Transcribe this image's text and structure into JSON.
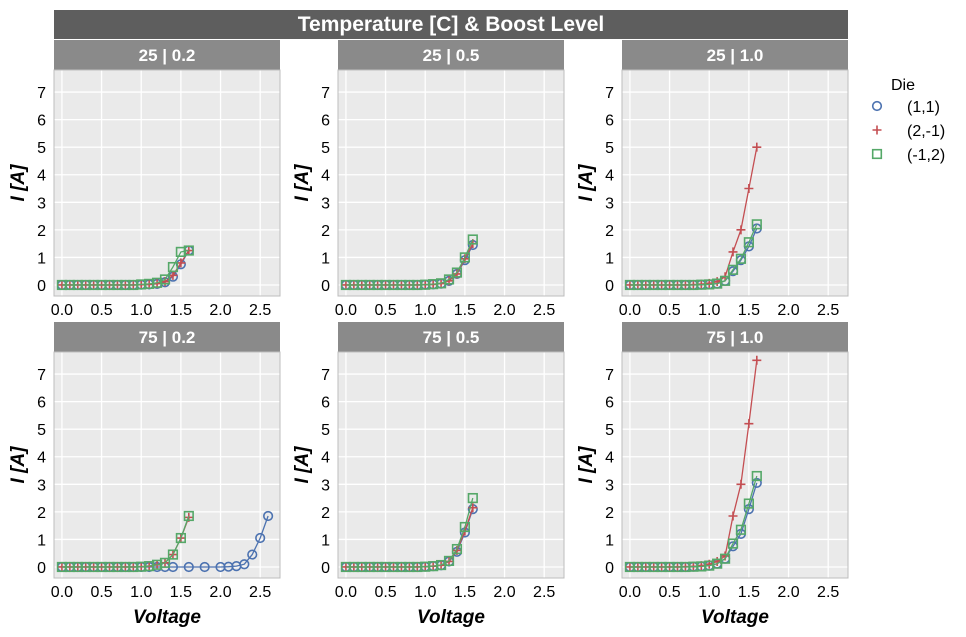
{
  "title": "Temperature [C] & Boost Level",
  "legend": {
    "title": "Die",
    "entries": [
      {
        "label": "(1,1)",
        "marker": "circle",
        "color": "#4c72b0"
      },
      {
        "label": "(2,-1)",
        "marker": "plus",
        "color": "#c44e52"
      },
      {
        "label": "(-1,2)",
        "marker": "square",
        "color": "#55a868"
      }
    ]
  },
  "chart_data": {
    "type": "line",
    "xlabel": "Voltage",
    "ylabel": "I [A]",
    "xlim": [
      -0.1,
      2.75
    ],
    "ylim": [
      -0.4,
      7.8
    ],
    "x_ticks": [
      0.0,
      0.5,
      1.0,
      1.5,
      2.0,
      2.5
    ],
    "x_tick_labels": [
      "0.0",
      "0.5",
      "1.0",
      "1.5",
      "2.0",
      "2.5"
    ],
    "y_ticks": [
      0,
      1,
      2,
      3,
      4,
      5,
      6,
      7
    ],
    "y_tick_labels": [
      "0",
      "1",
      "2",
      "3",
      "4",
      "5",
      "6",
      "7"
    ],
    "grid": true,
    "legend_position": "right",
    "panels": [
      {
        "label": "25 | 0.2",
        "series": [
          {
            "name": "(1,1)",
            "x": [
              0,
              0.1,
              0.2,
              0.3,
              0.4,
              0.5,
              0.6,
              0.7,
              0.8,
              0.9,
              1.0,
              1.1,
              1.2,
              1.3,
              1.4,
              1.5,
              1.6
            ],
            "y": [
              0,
              0,
              0,
              0,
              0,
              0,
              0,
              0,
              0,
              0,
              0.01,
              0.02,
              0.04,
              0.1,
              0.3,
              0.75,
              1.25
            ]
          },
          {
            "name": "(2,-1)",
            "x": [
              0,
              0.1,
              0.2,
              0.3,
              0.4,
              0.5,
              0.6,
              0.7,
              0.8,
              0.9,
              1.0,
              1.1,
              1.2,
              1.3,
              1.4,
              1.5,
              1.6
            ],
            "y": [
              0,
              0,
              0,
              0,
              0,
              0,
              0,
              0,
              0,
              0,
              0.01,
              0.02,
              0.05,
              0.12,
              0.35,
              0.8,
              1.25
            ]
          },
          {
            "name": "(-1,2)",
            "x": [
              0,
              0.1,
              0.2,
              0.3,
              0.4,
              0.5,
              0.6,
              0.7,
              0.8,
              0.9,
              1.0,
              1.1,
              1.2,
              1.3,
              1.4,
              1.5,
              1.6
            ],
            "y": [
              0,
              0,
              0,
              0,
              0,
              0,
              0,
              0,
              0,
              0,
              0.02,
              0.04,
              0.08,
              0.2,
              0.65,
              1.2,
              1.25
            ]
          }
        ]
      },
      {
        "label": "25 | 0.5",
        "series": [
          {
            "name": "(1,1)",
            "x": [
              0,
              0.1,
              0.2,
              0.3,
              0.4,
              0.5,
              0.6,
              0.7,
              0.8,
              0.9,
              1.0,
              1.1,
              1.2,
              1.3,
              1.4,
              1.5,
              1.6
            ],
            "y": [
              0,
              0,
              0,
              0,
              0,
              0,
              0,
              0,
              0,
              0,
              0.01,
              0.02,
              0.05,
              0.15,
              0.4,
              0.9,
              1.45
            ]
          },
          {
            "name": "(2,-1)",
            "x": [
              0,
              0.1,
              0.2,
              0.3,
              0.4,
              0.5,
              0.6,
              0.7,
              0.8,
              0.9,
              1.0,
              1.1,
              1.2,
              1.3,
              1.4,
              1.5,
              1.6
            ],
            "y": [
              0,
              0,
              0,
              0,
              0,
              0,
              0,
              0,
              0,
              0,
              0.01,
              0.02,
              0.05,
              0.15,
              0.4,
              0.95,
              1.5
            ]
          },
          {
            "name": "(-1,2)",
            "x": [
              0,
              0.1,
              0.2,
              0.3,
              0.4,
              0.5,
              0.6,
              0.7,
              0.8,
              0.9,
              1.0,
              1.1,
              1.2,
              1.3,
              1.4,
              1.5,
              1.6
            ],
            "y": [
              0,
              0,
              0,
              0,
              0,
              0,
              0,
              0,
              0,
              0,
              0.01,
              0.03,
              0.06,
              0.2,
              0.45,
              1.0,
              1.65
            ]
          }
        ]
      },
      {
        "label": "25 | 1.0",
        "series": [
          {
            "name": "(1,1)",
            "x": [
              0,
              0.1,
              0.2,
              0.3,
              0.4,
              0.5,
              0.6,
              0.7,
              0.8,
              0.9,
              1.0,
              1.1,
              1.2,
              1.3,
              1.4,
              1.5,
              1.6
            ],
            "y": [
              0,
              0,
              0,
              0,
              0,
              0,
              0,
              0,
              0,
              0.01,
              0.02,
              0.05,
              0.15,
              0.5,
              0.9,
              1.4,
              2.05
            ]
          },
          {
            "name": "(2,-1)",
            "x": [
              0,
              0.1,
              0.2,
              0.3,
              0.4,
              0.5,
              0.6,
              0.7,
              0.8,
              0.9,
              1.0,
              1.1,
              1.2,
              1.3,
              1.4,
              1.5,
              1.6
            ],
            "y": [
              0,
              0,
              0,
              0,
              0,
              0,
              0,
              0,
              0.01,
              0.03,
              0.06,
              0.12,
              0.3,
              1.2,
              2.0,
              3.5,
              5.0
            ]
          },
          {
            "name": "(-1,2)",
            "x": [
              0,
              0.1,
              0.2,
              0.3,
              0.4,
              0.5,
              0.6,
              0.7,
              0.8,
              0.9,
              1.0,
              1.1,
              1.2,
              1.3,
              1.4,
              1.5,
              1.6
            ],
            "y": [
              0,
              0,
              0,
              0,
              0,
              0,
              0,
              0,
              0,
              0.01,
              0.02,
              0.05,
              0.15,
              0.55,
              0.95,
              1.55,
              2.2
            ]
          }
        ]
      },
      {
        "label": "75 | 0.2",
        "series": [
          {
            "name": "(1,1)",
            "x": [
              0,
              0.1,
              0.2,
              0.3,
              0.4,
              0.5,
              0.6,
              0.7,
              0.8,
              0.9,
              1.0,
              1.1,
              1.2,
              1.3,
              1.4,
              1.6,
              1.8,
              2.0,
              2.1,
              2.2,
              2.3,
              2.4,
              2.5,
              2.6
            ],
            "y": [
              0,
              0,
              0,
              0,
              0,
              0,
              0,
              0,
              0,
              0,
              0,
              0,
              0,
              0,
              0,
              0,
              0,
              0,
              0.01,
              0.03,
              0.1,
              0.45,
              1.05,
              1.85
            ]
          },
          {
            "name": "(2,-1)",
            "x": [
              0,
              0.1,
              0.2,
              0.3,
              0.4,
              0.5,
              0.6,
              0.7,
              0.8,
              0.9,
              1.0,
              1.1,
              1.2,
              1.3,
              1.4,
              1.5,
              1.6
            ],
            "y": [
              0,
              0,
              0,
              0,
              0,
              0,
              0,
              0,
              0,
              0,
              0.01,
              0.03,
              0.08,
              0.15,
              0.45,
              1.05,
              1.8
            ]
          },
          {
            "name": "(-1,2)",
            "x": [
              0,
              0.1,
              0.2,
              0.3,
              0.4,
              0.5,
              0.6,
              0.7,
              0.8,
              0.9,
              1.0,
              1.1,
              1.2,
              1.3,
              1.4,
              1.5,
              1.6
            ],
            "y": [
              0,
              0,
              0,
              0,
              0,
              0,
              0,
              0,
              0,
              0,
              0.01,
              0.03,
              0.08,
              0.15,
              0.45,
              1.05,
              1.85
            ]
          }
        ]
      },
      {
        "label": "75 | 0.5",
        "series": [
          {
            "name": "(1,1)",
            "x": [
              0,
              0.1,
              0.2,
              0.3,
              0.4,
              0.5,
              0.6,
              0.7,
              0.8,
              0.9,
              1.0,
              1.1,
              1.2,
              1.3,
              1.4,
              1.5,
              1.6
            ],
            "y": [
              0,
              0,
              0,
              0,
              0,
              0,
              0,
              0,
              0,
              0,
              0.01,
              0.03,
              0.06,
              0.2,
              0.55,
              1.25,
              2.1
            ]
          },
          {
            "name": "(2,-1)",
            "x": [
              0,
              0.1,
              0.2,
              0.3,
              0.4,
              0.5,
              0.6,
              0.7,
              0.8,
              0.9,
              1.0,
              1.1,
              1.2,
              1.3,
              1.4,
              1.5,
              1.6
            ],
            "y": [
              0,
              0,
              0,
              0,
              0,
              0,
              0,
              0,
              0,
              0,
              0.01,
              0.03,
              0.06,
              0.2,
              0.6,
              1.3,
              2.15
            ]
          },
          {
            "name": "(-1,2)",
            "x": [
              0,
              0.1,
              0.2,
              0.3,
              0.4,
              0.5,
              0.6,
              0.7,
              0.8,
              0.9,
              1.0,
              1.1,
              1.2,
              1.3,
              1.4,
              1.5,
              1.6
            ],
            "y": [
              0,
              0,
              0,
              0,
              0,
              0,
              0,
              0,
              0,
              0,
              0.01,
              0.03,
              0.07,
              0.22,
              0.65,
              1.45,
              2.5
            ]
          }
        ]
      },
      {
        "label": "75 | 1.0",
        "series": [
          {
            "name": "(1,1)",
            "x": [
              0,
              0.1,
              0.2,
              0.3,
              0.4,
              0.5,
              0.6,
              0.7,
              0.8,
              0.9,
              1.0,
              1.1,
              1.2,
              1.3,
              1.4,
              1.5,
              1.6
            ],
            "y": [
              0,
              0,
              0,
              0,
              0,
              0,
              0,
              0,
              0.01,
              0.02,
              0.05,
              0.12,
              0.3,
              0.75,
              1.2,
              2.1,
              3.05
            ]
          },
          {
            "name": "(2,-1)",
            "x": [
              0,
              0.1,
              0.2,
              0.3,
              0.4,
              0.5,
              0.6,
              0.7,
              0.8,
              0.9,
              1.0,
              1.1,
              1.2,
              1.3,
              1.4,
              1.5,
              1.6
            ],
            "y": [
              0,
              0,
              0,
              0,
              0,
              0,
              0,
              0.01,
              0.02,
              0.05,
              0.1,
              0.2,
              0.4,
              1.85,
              3.0,
              5.2,
              7.5
            ]
          },
          {
            "name": "(-1,2)",
            "x": [
              0,
              0.1,
              0.2,
              0.3,
              0.4,
              0.5,
              0.6,
              0.7,
              0.8,
              0.9,
              1.0,
              1.1,
              1.2,
              1.3,
              1.4,
              1.5,
              1.6
            ],
            "y": [
              0,
              0,
              0,
              0,
              0,
              0,
              0,
              0,
              0.01,
              0.02,
              0.05,
              0.12,
              0.3,
              0.85,
              1.35,
              2.3,
              3.3
            ]
          }
        ]
      }
    ]
  }
}
